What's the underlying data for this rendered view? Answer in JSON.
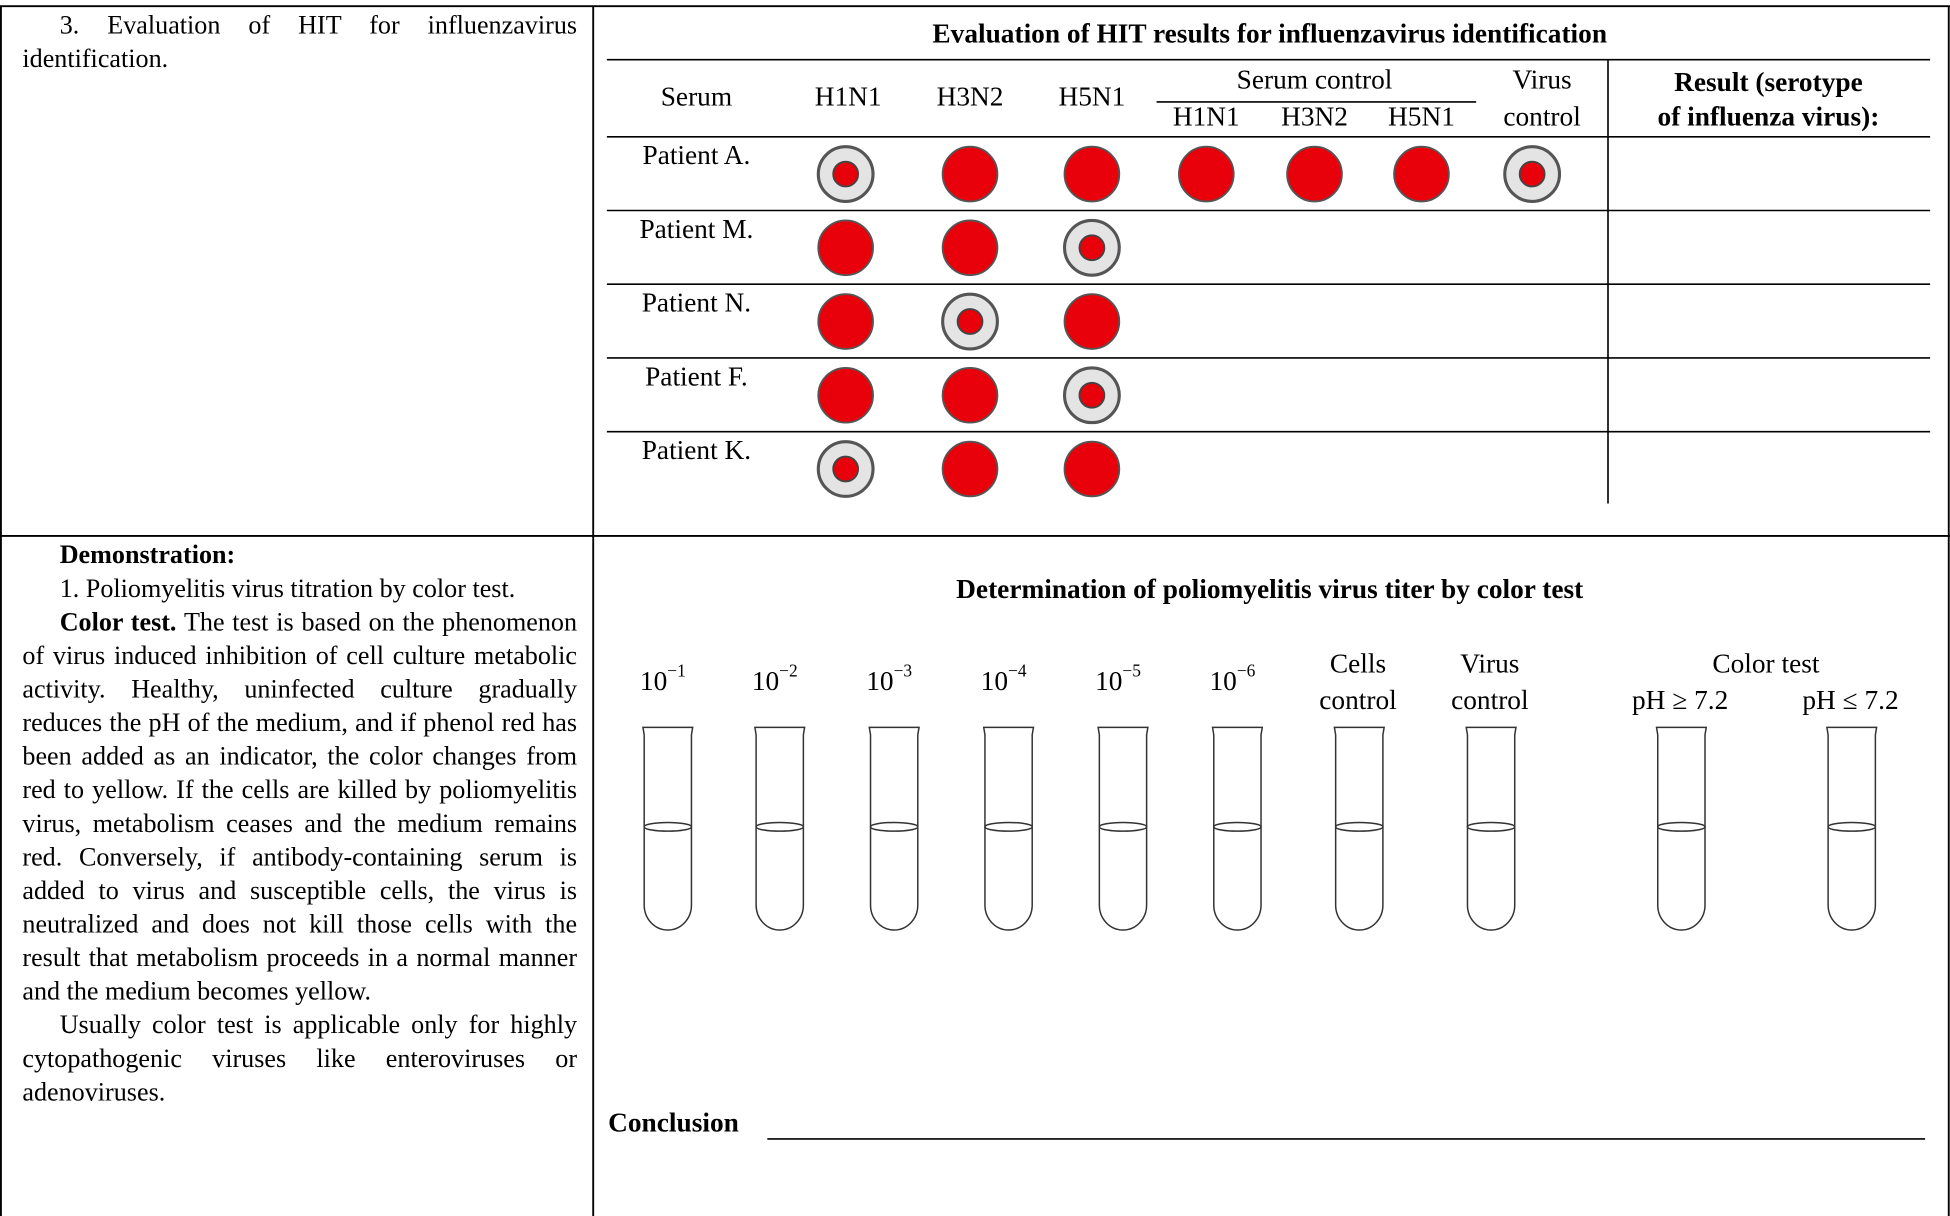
{
  "left_top": {
    "text": "3. Evaluation of HIT for influenzavirus identification."
  },
  "hit_table": {
    "title": "Evaluation of HIT results for influenzavirus identification",
    "headers": {
      "serum": "Serum",
      "antigens": [
        "H1N1",
        "H3N2",
        "H5N1"
      ],
      "serum_control": "Serum control",
      "serum_control_sub": [
        "H1N1",
        "H3N2",
        "H5N1"
      ],
      "virus_control": [
        "Virus",
        "control"
      ],
      "result": [
        "Result (serotype",
        "of influenza virus):"
      ]
    },
    "rows": [
      {
        "label": "Patient A.",
        "dots": [
          "ring",
          "full",
          "full",
          "full",
          "full",
          "full",
          "ring"
        ]
      },
      {
        "label": "Patient M.",
        "dots": [
          "full",
          "full",
          "ring"
        ]
      },
      {
        "label": "Patient N.",
        "dots": [
          "full",
          "ring",
          "full"
        ]
      },
      {
        "label": "Patient F.",
        "dots": [
          "full",
          "full",
          "ring"
        ]
      },
      {
        "label": "Patient K.",
        "dots": [
          "ring",
          "full",
          "full"
        ]
      }
    ]
  },
  "demonstration": {
    "heading": "Demonstration:",
    "item": "1. Poliomyelitis virus titration by color test.",
    "color_test": {
      "lead": "Color test.",
      "text": "The test is based on the phenomenon of virus induced inhibition of cell culture metabolic activity. Healthy, uninfected culture gradually reduces the pH of the medium, and if phenol red has been added as an indicator, the color changes from red to yellow. If the cells are killed by poliomyelitis virus, metabolism ceases and the medium remains red. Conversely, if antibody-containing serum is added to virus and susceptible cells, the virus is neutralized and does not kill those cells with the result that metabolism proceeds in a normal manner and the medium becomes yellow."
    },
    "note": "Usually color test is applicable only for highly cytopathogenic viruses like enteroviruses or adenoviruses."
  },
  "titration": {
    "title": "Determination of poliomyelitis virus titer by color test",
    "dilutions": [
      {
        "base": "10",
        "exp": "−1"
      },
      {
        "base": "10",
        "exp": "−2"
      },
      {
        "base": "10",
        "exp": "−3"
      },
      {
        "base": "10",
        "exp": "−4"
      },
      {
        "base": "10",
        "exp": "−5"
      },
      {
        "base": "10",
        "exp": "−6"
      }
    ],
    "cells_control": [
      "Cells",
      "control"
    ],
    "virus_control": [
      "Virus",
      "control"
    ],
    "color_test": {
      "title": "Color test",
      "tubes": [
        "pH ≥ 7.2",
        "pH ≤ 7.2"
      ]
    },
    "conclusion": "Conclusion"
  }
}
